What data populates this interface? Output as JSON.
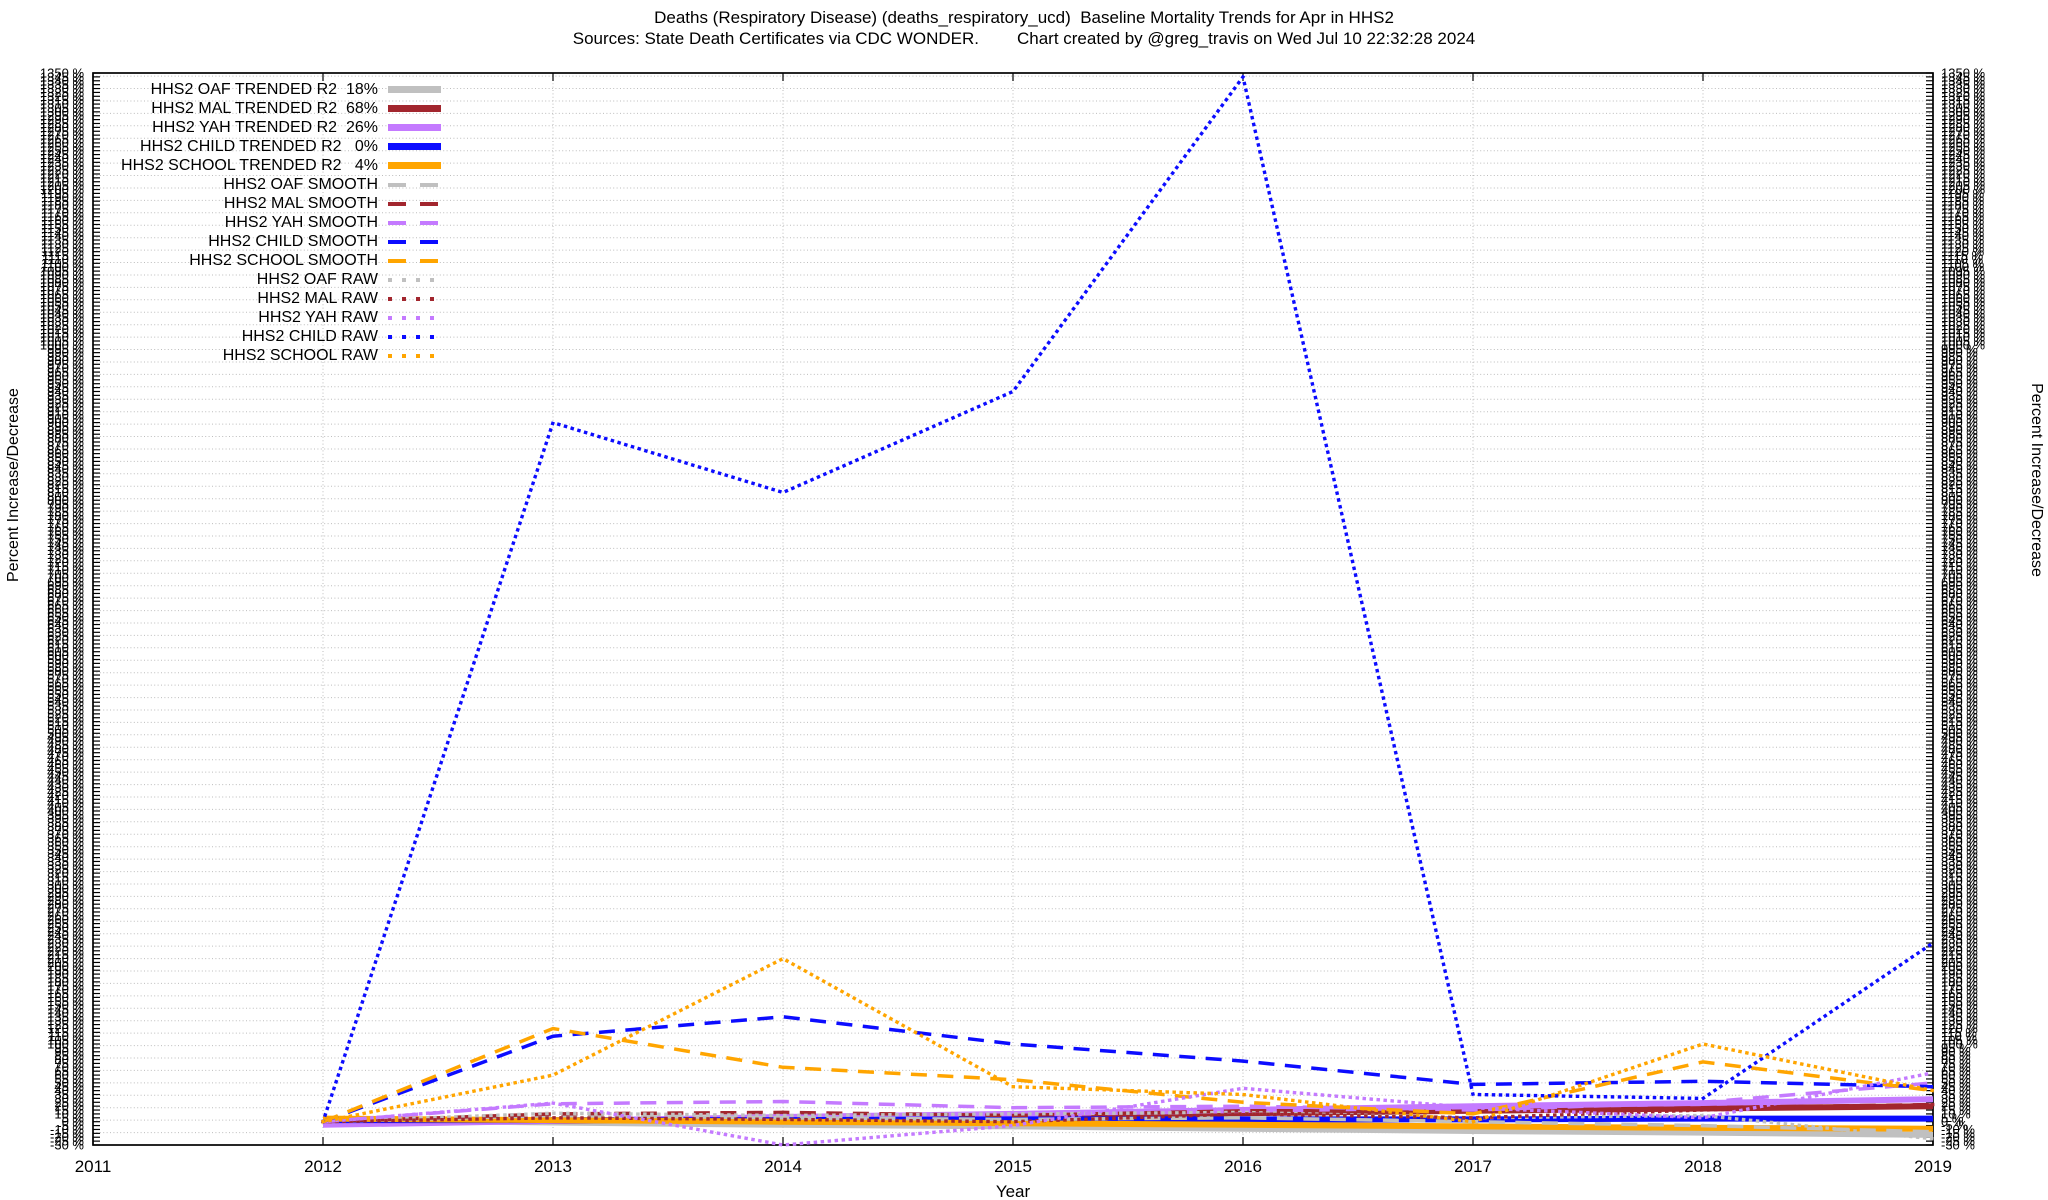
{
  "title": "Deaths (Respiratory Disease) (deaths_respiratory_ucd)  Baseline Mortality Trends for Apr in HHS2",
  "subtitle": {
    "sources": "Sources: State Death Certificates via CDC WONDER.",
    "credit": "Chart created by @greg_travis on Wed Jul 10 22:32:28 2024"
  },
  "chart_data": {
    "type": "line",
    "x": [
      2012,
      2013,
      2014,
      2015,
      2016,
      2017,
      2018,
      2019
    ],
    "x_axis": {
      "label": "Year",
      "range": [
        2011,
        2019
      ],
      "ticks": [
        2011,
        2012,
        2013,
        2014,
        2015,
        2016,
        2017,
        2018,
        2019
      ]
    },
    "y_axis": {
      "label": "Percent Increase/Decrease",
      "unit": "%",
      "range": [
        -30,
        1350
      ],
      "tick_step": 5,
      "mirrored": true
    },
    "grid": {
      "h_step": 16,
      "vertical_at_years": true
    },
    "legend_position": "top-left",
    "series": [
      {
        "name": "hhs2-oaf-trended",
        "legend_label": "HHS2 OAF TRENDED R2  18%",
        "color": "#c0c0c0",
        "style": "solid",
        "values": [
          2,
          -1,
          -4,
          -6,
          -9,
          -12,
          -14,
          -17
        ]
      },
      {
        "name": "hhs2-mal-trended",
        "legend_label": "HHS2 MAL TRENDED R2  68%",
        "color": "#a2262e",
        "style": "solid",
        "values": [
          -2,
          1,
          4,
          7,
          11,
          14,
          17,
          20
        ]
      },
      {
        "name": "hhs2-yah-trended",
        "legend_label": "HHS2 YAH TRENDED R2  26%",
        "color": "#c47aff",
        "style": "solid",
        "values": [
          -4,
          1,
          6,
          10,
          15,
          20,
          24,
          29
        ]
      },
      {
        "name": "hhs2-child-trended",
        "legend_label": "HHS2 CHILD TRENDED R2   0%",
        "color": "#0c0cff",
        "style": "solid",
        "values": [
          2,
          2,
          2,
          3,
          3,
          3,
          4,
          4
        ]
      },
      {
        "name": "hhs2-school-trended",
        "legend_label": "HHS2 SCHOOL TRENDED R2   4%",
        "color": "#ffa500",
        "style": "solid",
        "values": [
          4,
          2,
          0,
          -2,
          -4,
          -6,
          -8,
          -9
        ]
      },
      {
        "name": "hhs2-oaf-smooth",
        "legend_label": "HHS2 OAF SMOOTH",
        "color": "#c0c0c0",
        "style": "dashed",
        "values": [
          0,
          8,
          5,
          3,
          5,
          0,
          -5,
          -13
        ]
      },
      {
        "name": "hhs2-mal-smooth",
        "legend_label": "HHS2 MAL SMOOTH",
        "color": "#a2262e",
        "style": "dashed",
        "values": [
          0,
          10,
          12,
          8,
          14,
          14,
          18,
          22
        ]
      },
      {
        "name": "hhs2-yah-smooth",
        "legend_label": "HHS2 YAH SMOOTH",
        "color": "#c47aff",
        "style": "dashed",
        "values": [
          0,
          23,
          26,
          18,
          20,
          15,
          25,
          50
        ]
      },
      {
        "name": "hhs2-child-smooth",
        "legend_label": "HHS2 CHILD SMOOTH",
        "color": "#0c0cff",
        "style": "dashed",
        "values": [
          0,
          110,
          135,
          100,
          78,
          48,
          52,
          45
        ]
      },
      {
        "name": "hhs2-school-smooth",
        "legend_label": "HHS2 SCHOOL SMOOTH",
        "color": "#ffa500",
        "style": "dashed",
        "values": [
          0,
          120,
          70,
          54,
          25,
          10,
          77,
          40
        ]
      },
      {
        "name": "hhs2-oaf-raw",
        "legend_label": "HHS2 OAF RAW",
        "color": "#c0c0c0",
        "style": "dotted",
        "values": [
          0,
          11,
          8,
          10,
          12,
          5,
          8,
          -22
        ]
      },
      {
        "name": "hhs2-mal-raw",
        "legend_label": "HHS2 MAL RAW",
        "color": "#a2262e",
        "style": "dotted",
        "values": [
          0,
          5,
          3,
          0,
          10,
          5,
          15,
          22
        ]
      },
      {
        "name": "hhs2-yah-raw",
        "legend_label": "HHS2 YAH RAW",
        "color": "#c47aff",
        "style": "dotted",
        "values": [
          0,
          24,
          -30,
          -5,
          43,
          18,
          5,
          63
        ]
      },
      {
        "name": "hhs2-child-raw",
        "legend_label": "HHS2 CHILD RAW",
        "color": "#0c0cff",
        "style": "dotted",
        "values": [
          0,
          900,
          810,
          940,
          1345,
          35,
          30,
          230
        ]
      },
      {
        "name": "hhs2-school-raw",
        "legend_label": "HHS2 SCHOOL RAW",
        "color": "#ffa500",
        "style": "dotted",
        "values": [
          0,
          60,
          210,
          45,
          35,
          0,
          100,
          40
        ]
      }
    ]
  }
}
